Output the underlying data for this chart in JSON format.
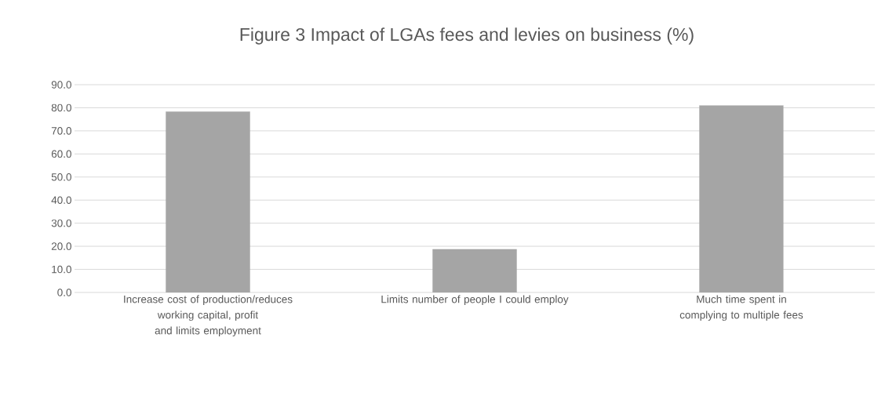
{
  "chart_data": {
    "type": "bar",
    "title": "Figure 3 Impact of LGAs fees and levies on business (%)",
    "categories": [
      "Increase cost of production/reduces working capital, profit and limits employment",
      "Limits number of people I could employ",
      "Much time spent in complying to multiple fees"
    ],
    "values": [
      78.3,
      18.7,
      81.0
    ],
    "color": "#a5a5a5",
    "ylim": [
      0,
      90
    ],
    "yticks": [
      {
        "value": 0,
        "label": "0.0"
      },
      {
        "value": 10,
        "label": "10.0"
      },
      {
        "value": 20,
        "label": "20.0"
      },
      {
        "value": 30,
        "label": "30.0"
      },
      {
        "value": 40,
        "label": "40.0"
      },
      {
        "value": 50,
        "label": "50.0"
      },
      {
        "value": 60,
        "label": "60.0"
      },
      {
        "value": 70,
        "label": "70.0"
      },
      {
        "value": 80,
        "label": "80.0"
      },
      {
        "value": 90,
        "label": "90.0"
      }
    ],
    "grid": "y"
  }
}
